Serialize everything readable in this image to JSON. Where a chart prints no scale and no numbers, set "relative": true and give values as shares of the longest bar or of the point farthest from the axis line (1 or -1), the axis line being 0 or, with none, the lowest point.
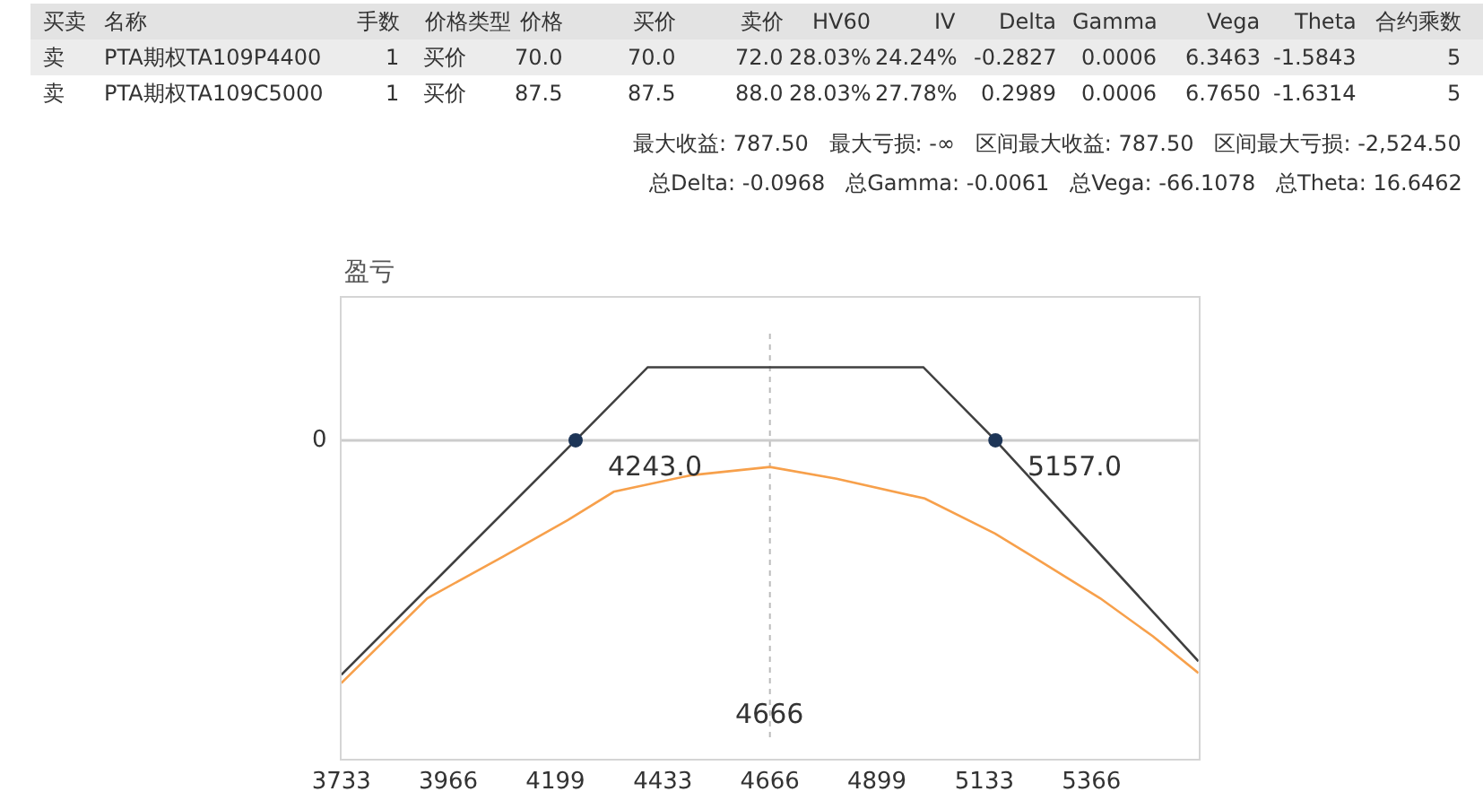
{
  "chart_data": [
    {
      "type": "other",
      "annotations": [
        "买卖",
        "名称",
        "手数",
        "价格类型",
        "价格",
        "买价",
        "卖价",
        "HV60",
        "IV",
        "Delta",
        "Gamma",
        "Vega",
        "Theta",
        "合约乘数",
        "卖",
        "PTA期权TA109P4400",
        "1",
        "买价",
        "70.0",
        "70.0",
        "72.0",
        "28.03%",
        "24.24%",
        "-0.2827",
        "0.0006",
        "6.3463",
        "-1.5843",
        "5",
        "卖",
        "PTA期权TA109C5000",
        "1",
        "买价",
        "87.5",
        "87.5",
        "88.0",
        "28.03%",
        "27.78%",
        "0.2989",
        "0.0006",
        "6.7650",
        "-1.6314",
        "5",
        "最大收益: 787.50   最大亏损: -∞   区间最大收益: 787.50   区间最大亏损: -2,524.50",
        "总Delta: -0.0968   总Gamma: -0.0061   总Vega: -66.1078   总Theta: 16.6462"
      ]
    },
    {
      "type": "line",
      "ylabel": "盈亏",
      "relative": true,
      "annotations": [
        {
          "text": "4243.0",
          "x": 4243,
          "y": 0
        },
        {
          "text": "5157.0",
          "x": 5157,
          "y": 0
        }
      ],
      "xlim": [
        3733,
        5599
      ],
      "xticks": [
        3733,
        3966,
        4199,
        4433,
        4666,
        4899,
        5133,
        5366
      ],
      "grid": false,
      "marker": "none",
      "line_style": "solid",
      "series": [
        {
          "color": "#404040",
          "x": [
            3733,
            4243,
            4400,
            5000,
            5157,
            5599
          ],
          "values": [
            -0.966,
            0,
            0.301,
            0.301,
            0,
            -0.911
          ]
        },
        {
          "color": "#f7a04b",
          "x": [
            3733,
            3920,
            4085,
            4226,
            4326,
            4494,
            4666,
            4811,
            5003,
            5156,
            5244,
            5385,
            5500,
            5599
          ],
          "values": [
            -1,
            -0.651,
            -0.479,
            -0.329,
            -0.212,
            -0.144,
            -0.11,
            -0.158,
            -0.24,
            -0.384,
            -0.486,
            -0.651,
            -0.808,
            -0.959
          ]
        },
        {
          "type": "scatter",
          "marker": "circle",
          "color": "#1d3557",
          "x": [
            4243,
            5157
          ],
          "values": [
            0,
            0
          ]
        }
      ],
      "ref_lines": [
        {
          "axis": "x",
          "value": 4666,
          "label": "4666",
          "color": "#bbbbbb",
          "line_style": "dotted"
        },
        {
          "axis": "y",
          "value": 0,
          "label": "0",
          "color": "#cccccc"
        }
      ]
    }
  ]
}
